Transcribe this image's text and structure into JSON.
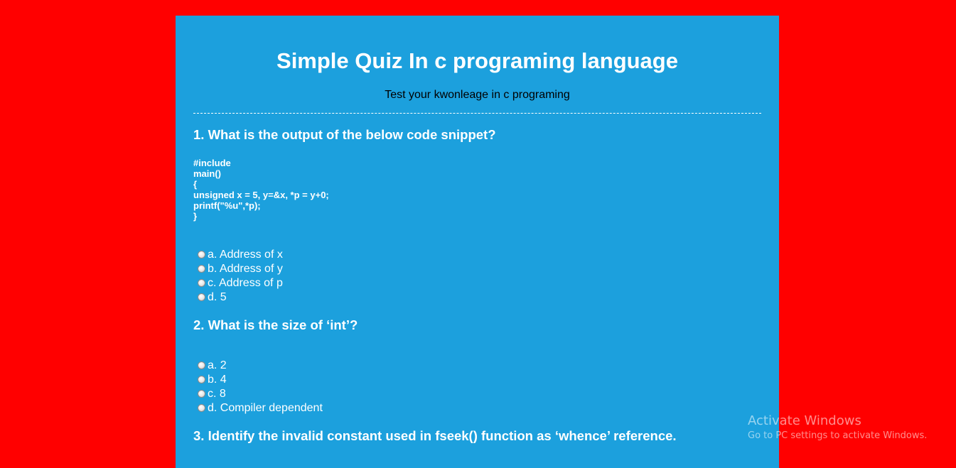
{
  "quiz": {
    "title": "Simple Quiz In c programing language",
    "subtitle": "Test your kwonleage in c programing",
    "questions": [
      {
        "text": "1. What is the output of the below code snippet?",
        "code": "#include\nmain()\n{\nunsigned x = 5, y=&x, *p = y+0;\nprintf(\"%u\",*p);\n}",
        "options": [
          "a. Address of x",
          "b. Address of y",
          "c. Address of p",
          "d. 5"
        ]
      },
      {
        "text": "2. What is the size of ‘int’?",
        "options": [
          "a. 2",
          "b. 4",
          "c. 8",
          "d. Compiler dependent"
        ]
      },
      {
        "text": "3. Identify the invalid constant used in fseek() function as ‘whence’ reference."
      }
    ]
  },
  "watermark": {
    "title": "Activate Windows",
    "subtitle": "Go to PC settings to activate Windows."
  },
  "colors": {
    "page_background": "#ff0000",
    "panel_background": "#1ca0dd",
    "heading_text": "#ffffff",
    "subtitle_text": "#000000"
  }
}
